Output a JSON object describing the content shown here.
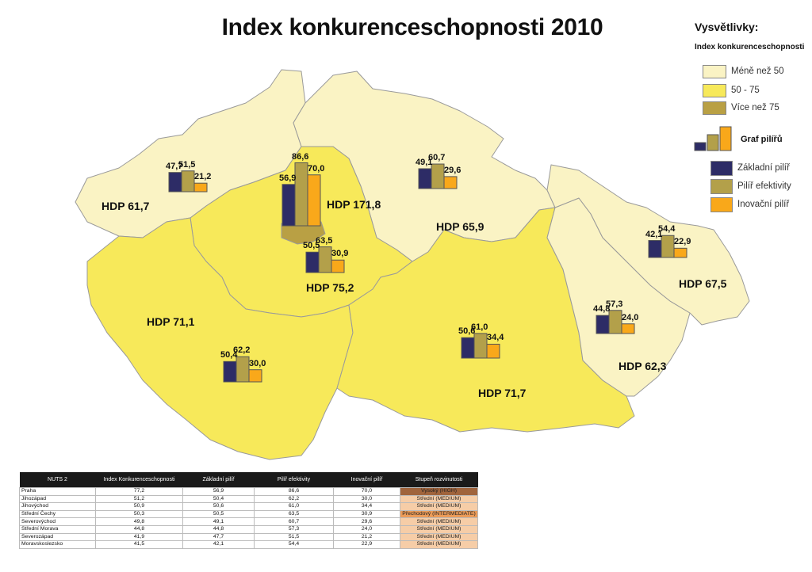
{
  "title": "Index konkurenceschopnosti 2010",
  "legend": {
    "title": "Vysvětlivky:",
    "index_title": "Index konkurenceschopnosti",
    "classes": [
      {
        "label": "Méně než 50",
        "color": "#faf3c4"
      },
      {
        "label": "50 - 75",
        "color": "#f7e95a"
      },
      {
        "label": "Více než 75",
        "color": "#b9a044"
      }
    ],
    "pillar_chart_title": "Graf pilířů",
    "pillars": [
      {
        "label": "Základní pilíř",
        "color": "#2d2c66"
      },
      {
        "label": "Pilíř efektivity",
        "color": "#b3a04a"
      },
      {
        "label": "Inovační pilíř",
        "color": "#f9a81a"
      }
    ]
  },
  "chart_data": {
    "type": "bar",
    "categories": [
      "Základní pilíř",
      "Pilíř efektivity",
      "Inovační pilíř"
    ],
    "regions": [
      {
        "name": "Praha",
        "hdp": "HDP 171,8",
        "values": [
          56.9,
          86.6,
          70.0
        ],
        "value_labels": [
          "56,9",
          "86,6",
          "70,0"
        ],
        "class": 2
      },
      {
        "name": "Střední Čechy",
        "hdp": "HDP 75,2",
        "values": [
          50.5,
          63.5,
          30.9
        ],
        "value_labels": [
          "50,5",
          "63,5",
          "30,9"
        ],
        "class": 1
      },
      {
        "name": "Jihozápad",
        "hdp": "HDP 71,1",
        "values": [
          50.4,
          62.2,
          30.0
        ],
        "value_labels": [
          "50,4",
          "62,2",
          "30,0"
        ],
        "class": 1
      },
      {
        "name": "Severozápad",
        "hdp": "HDP 61,7",
        "values": [
          47.7,
          51.5,
          21.2
        ],
        "value_labels": [
          "47,7",
          "51,5",
          "21,2"
        ],
        "class": 0
      },
      {
        "name": "Severovýchod",
        "hdp": "HDP 65,9",
        "values": [
          49.1,
          60.7,
          29.6
        ],
        "value_labels": [
          "49,1",
          "60,7",
          "29,6"
        ],
        "class": 0
      },
      {
        "name": "Jihovýchod",
        "hdp": "HDP 71,7",
        "values": [
          50.6,
          61.0,
          34.4
        ],
        "value_labels": [
          "50,6",
          "61,0",
          "34,4"
        ],
        "class": 1
      },
      {
        "name": "Střední Morava",
        "hdp": "HDP 62,3",
        "values": [
          44.8,
          57.3,
          24.0
        ],
        "value_labels": [
          "44,8",
          "57,3",
          "24,0"
        ],
        "class": 0
      },
      {
        "name": "Moravskoslezsko",
        "hdp": "HDP 67,5",
        "values": [
          42.1,
          54.4,
          22.9
        ],
        "value_labels": [
          "42,1",
          "54,4",
          "22,9"
        ],
        "class": 0
      }
    ]
  },
  "table": {
    "headers": [
      "NUTS 2",
      "Index Konkurenceschopnosti",
      "Základní pilíř",
      "Pilíř efektivity",
      "Inovační pilíř",
      "Stupeň rozvinutosti"
    ],
    "rows": [
      {
        "region": "Praha",
        "index": "77,2",
        "zakladni": "56,9",
        "efektivita": "86,6",
        "inovace": "70,0",
        "stage": "Vysoký (HIGH)",
        "stage_color": "#a0643c"
      },
      {
        "region": "Jihozápad",
        "index": "51,2",
        "zakladni": "50,4",
        "efektivita": "62,2",
        "inovace": "30,0",
        "stage": "Střední (MEDIUM)",
        "stage_color": "#f6cda7"
      },
      {
        "region": "Jihovýchod",
        "index": "50,9",
        "zakladni": "50,6",
        "efektivita": "61,0",
        "inovace": "34,4",
        "stage": "Střední (MEDIUM)",
        "stage_color": "#f6cda7"
      },
      {
        "region": "Střední Čechy",
        "index": "50,3",
        "zakladni": "50,5",
        "efektivita": "63,5",
        "inovace": "30,9",
        "stage": "Přechodový (INTERMEDIATE)",
        "stage_color": "#eb9b58"
      },
      {
        "region": "Severovýchod",
        "index": "49,8",
        "zakladni": "49,1",
        "efektivita": "60,7",
        "inovace": "29,6",
        "stage": "Střední (MEDIUM)",
        "stage_color": "#f6cda7"
      },
      {
        "region": "Střední Morava",
        "index": "44,8",
        "zakladni": "44,8",
        "efektivita": "57,3",
        "inovace": "24,0",
        "stage": "Střední (MEDIUM)",
        "stage_color": "#f6cda7"
      },
      {
        "region": "Severozápad",
        "index": "41,9",
        "zakladni": "47,7",
        "efektivita": "51,5",
        "inovace": "21,2",
        "stage": "Střední (MEDIUM)",
        "stage_color": "#f6cda7"
      },
      {
        "region": "Moravskoslezsko",
        "index": "41,5",
        "zakladni": "42,1",
        "efektivita": "54,4",
        "inovace": "22,9",
        "stage": "Střední (MEDIUM)",
        "stage_color": "#f6cda7"
      }
    ]
  }
}
